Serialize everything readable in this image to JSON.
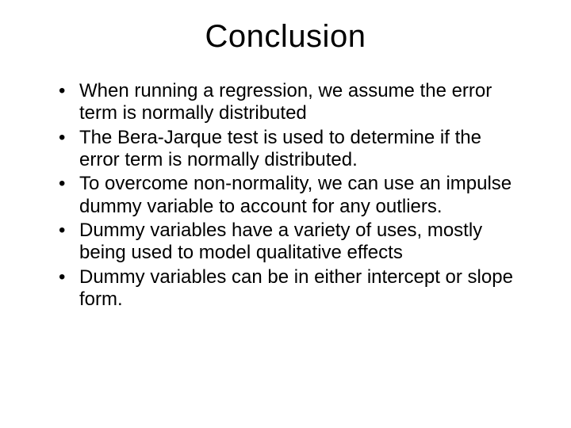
{
  "slide": {
    "title": "Conclusion",
    "bullets": [
      "When running a regression, we assume the error term is normally distributed",
      "The Bera-Jarque test is used to determine if the error term is normally distributed.",
      "To overcome non-normality, we can use an impulse dummy variable to account for any outliers.",
      "Dummy variables have a variety of uses, mostly being used to model qualitative effects",
      "Dummy variables can be in either intercept or slope form."
    ],
    "title_fontsize": 40,
    "body_fontsize": 24,
    "text_color": "#000000",
    "background_color": "#ffffff",
    "font_family": "Arial"
  }
}
